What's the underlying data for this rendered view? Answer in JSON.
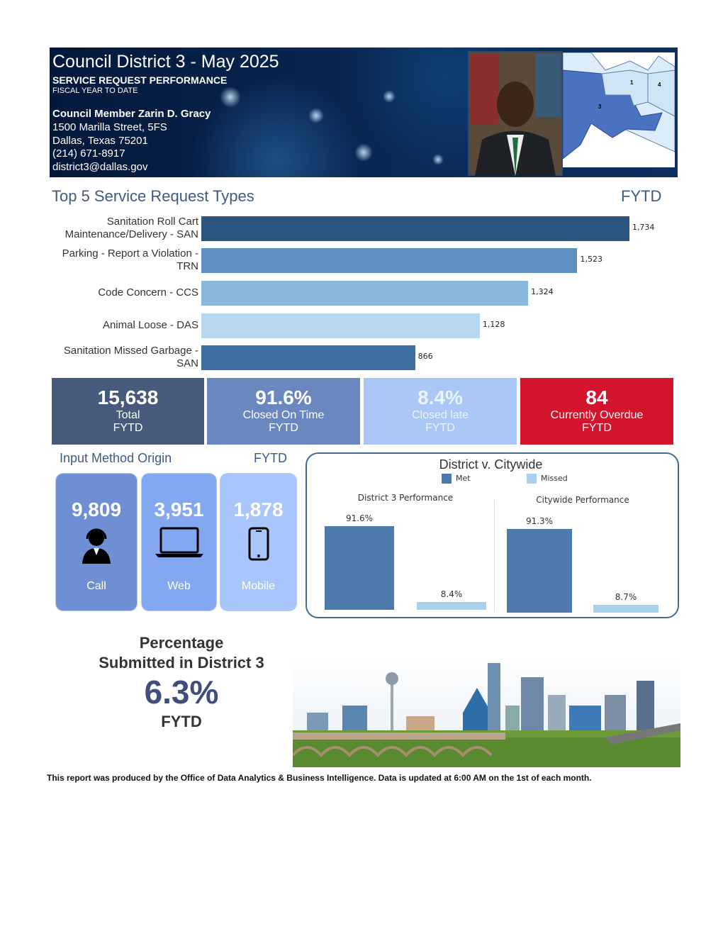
{
  "header": {
    "title": "Council District 3 - May 2025",
    "subtitle": "SERVICE REQUEST PERFORMANCE",
    "period": "FISCAL YEAR TO DATE",
    "member": "Council Member Zarin D. Gracy",
    "address": [
      "1500 Marilla Street, 5FS",
      "Dallas, Texas 75201",
      "(214) 671-8917",
      "district3@dallas.gov"
    ],
    "map_labels": [
      "1",
      "4",
      "3"
    ]
  },
  "top5": {
    "title": "Top 5 Service Request Types",
    "period": "FYTD",
    "categories": [
      "Sanitation Roll Cart Maintenance/Delivery - SAN",
      "Parking - Report a Violation - TRN",
      "Code Concern - CCS",
      "Animal Loose - DAS",
      "Sanitation Missed Garbage - SAN"
    ],
    "values": [
      1734,
      1523,
      1324,
      1128,
      866
    ],
    "value_labels": [
      "1,734",
      "1,523",
      "1,324",
      "1,128",
      "866"
    ],
    "colors": [
      "#2c5580",
      "#5f8fc0",
      "#8ab8dc",
      "#b7d8ef",
      "#3f6fa2"
    ]
  },
  "kpis": [
    {
      "value": "15,638",
      "label": "Total",
      "period": "FYTD",
      "color": "#475a7c"
    },
    {
      "value": "91.6%",
      "label": "Closed On Time",
      "period": "FYTD",
      "color": "#6a87c0"
    },
    {
      "value": "8.4%",
      "label": "Closed late",
      "period": "FYTD",
      "color": "#a9c6f5"
    },
    {
      "value": "84",
      "label": "Currently Overdue",
      "period": "FYTD",
      "color": "#d2142d"
    }
  ],
  "input_methods": {
    "title": "Input Method Origin",
    "period": "FYTD",
    "items": [
      {
        "value": "9,809",
        "label": "Call",
        "color": "#6f8fd4"
      },
      {
        "value": "3,951",
        "label": "Web",
        "color": "#84a8f0"
      },
      {
        "value": "1,878",
        "label": "Mobile",
        "color": "#a8c6fb"
      }
    ]
  },
  "comparison": {
    "title": "District v. Citywide",
    "panels": [
      "District 3 Performance",
      "Citywide Performance"
    ],
    "series": [
      {
        "name": "Met",
        "color": "#4e79ac",
        "values": [
          91.6,
          91.3
        ],
        "value_labels": [
          "91.6%",
          "91.3%"
        ]
      },
      {
        "name": "Missed",
        "color": "#a9d0ec",
        "values": [
          8.4,
          8.7
        ],
        "value_labels": [
          "8.4%",
          "8.7%"
        ]
      }
    ]
  },
  "share": {
    "lines": [
      "Percentage",
      "Submitted in District 3"
    ],
    "value": "6.3%",
    "period": "FYTD"
  },
  "footer": "This report was produced by the Office of Data Analytics & Business Intelligence. Data is updated at 6:00 AM on the 1st of each month."
}
